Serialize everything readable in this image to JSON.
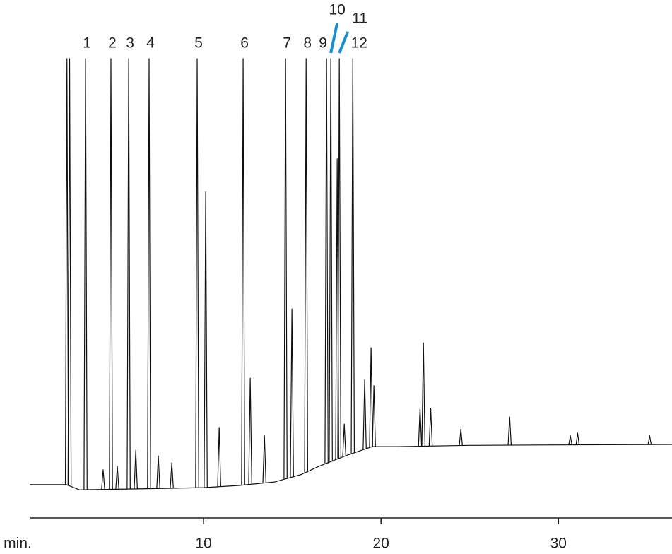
{
  "chart_data": {
    "type": "chromatogram",
    "x_label": "min.",
    "xlim": [
      0.2,
      36.4
    ],
    "xticks": [
      10,
      20,
      30
    ],
    "ylim": [
      0,
      100
    ],
    "color": "#111111",
    "leader_color": "#1a8fd0",
    "baseline": {
      "x": [
        0.2,
        2.27,
        3.0,
        6.0,
        10.0,
        12.0,
        14.0,
        15.5,
        16.5,
        18.0,
        19.5,
        21.0,
        25.0,
        30.0,
        36.4
      ],
      "values": [
        2.3,
        2.3,
        1.1,
        1.3,
        1.6,
        2.1,
        2.9,
        4.6,
        6.5,
        8.9,
        11.0,
        11.0,
        11.3,
        11.4,
        11.5
      ]
    },
    "labeled_peaks": {
      "labels": [
        "1",
        "2",
        "3",
        "4",
        "5",
        "6",
        "7",
        "8",
        "9",
        "10",
        "11",
        "12"
      ],
      "x": [
        3.35,
        4.78,
        5.78,
        6.93,
        9.64,
        12.23,
        14.62,
        15.78,
        16.93,
        17.17,
        17.65,
        18.41
      ],
      "values": [
        100,
        100,
        100,
        100,
        100,
        100,
        100,
        100,
        100,
        100,
        100,
        100
      ]
    },
    "peaks": {
      "x": [
        2.3,
        2.45,
        4.34,
        5.14,
        6.18,
        7.45,
        8.21,
        10.12,
        10.88,
        12.63,
        13.43,
        14.98,
        17.53,
        17.93,
        19.08,
        19.44,
        19.6,
        22.2,
        22.39,
        22.8,
        24.5,
        27.25,
        30.67,
        31.08,
        35.14
      ],
      "values": [
        100,
        100,
        5.7,
        6.5,
        10.2,
        8.9,
        7.3,
        69.4,
        15.4,
        26.7,
        13.5,
        42.6,
        77,
        16.2,
        26.3,
        33.7,
        25,
        19.8,
        34.8,
        19.8,
        15,
        17.8,
        13.5,
        14.1,
        13.5
      ]
    }
  }
}
